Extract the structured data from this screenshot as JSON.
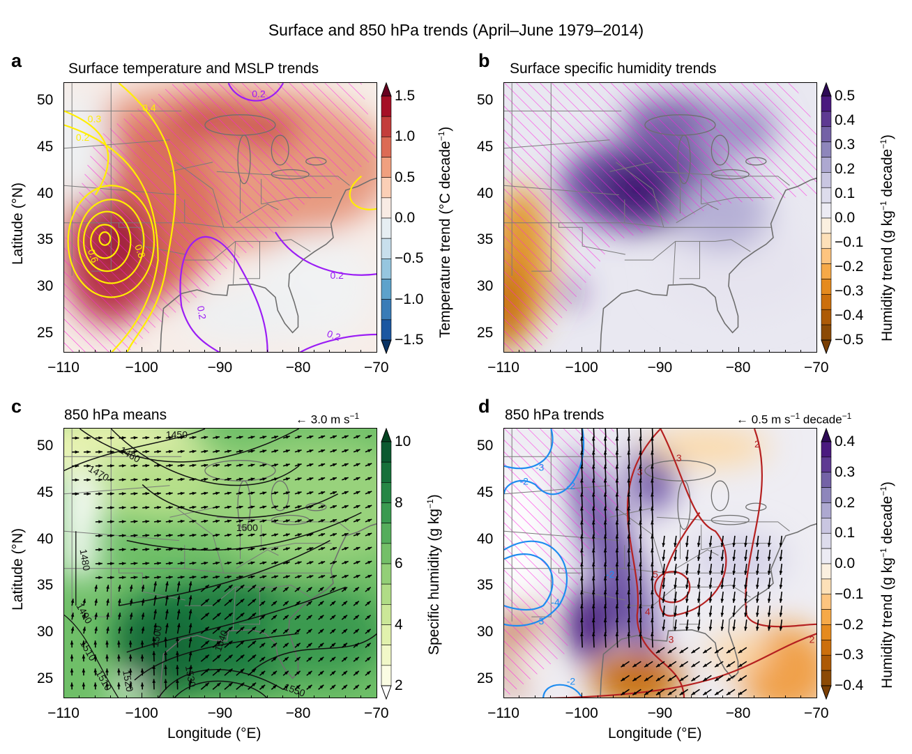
{
  "figure_title": "Surface and 850 hPa trends (April–June 1979–2014)",
  "lon_ticks": [
    "−110",
    "−100",
    "−90",
    "−80",
    "−70"
  ],
  "lat_ticks": [
    "50",
    "45",
    "40",
    "35",
    "30",
    "25"
  ],
  "panels": {
    "a": {
      "letter": "a",
      "title": "Surface temperature and MSLP trends",
      "ylabel": "Latitude (°N)",
      "cbar_label": "Temperature trend (°C decade",
      "cbar_sup": "−1",
      "cbar_ticks": [
        "1.5",
        "1.0",
        "0.5",
        "0.0",
        "−0.5",
        "−1.0",
        "−1.5"
      ],
      "cbar_colors": [
        "#a50f26",
        "#c33d3b",
        "#dc6b55",
        "#f0a07f",
        "#fbcfb6",
        "#f8ebe4",
        "#e6eef2",
        "#c8dfec",
        "#96c6df",
        "#5da2cb",
        "#3a7cb7",
        "#1b57a1"
      ],
      "cbar_ends": [
        "#67001f",
        "#0b3465"
      ],
      "contour_labels": [
        "0.4",
        "0.3",
        "0.2",
        "0.6",
        "0.8",
        "0.2",
        "0.2",
        "0.2",
        "0.2"
      ]
    },
    "b": {
      "letter": "b",
      "title": "Surface specific humidity trends",
      "cbar_label": "Humidity trend (g kg",
      "cbar_sup": "−1",
      "cbar_label2": " decade",
      "cbar_sup2": "−1",
      "cbar_ticks": [
        "0.5",
        "0.4",
        "0.3",
        "0.2",
        "0.1",
        "0.0",
        "−0.1",
        "−0.2",
        "−0.3",
        "−0.4",
        "−0.5"
      ],
      "cbar_colors": [
        "#4a1a7f",
        "#5e3a92",
        "#7462a6",
        "#8e86bb",
        "#ada8d0",
        "#c9c6e1",
        "#dddcec",
        "#ecebf3",
        "#fbf0e0",
        "#fde0b8",
        "#fdc47f",
        "#f6a948",
        "#e58a1e",
        "#cc6f0c",
        "#ad5a06",
        "#8c4a05"
      ],
      "cbar_ends": [
        "#2d0a55",
        "#7a3f04"
      ]
    },
    "c": {
      "letter": "c",
      "title": "850 hPa means",
      "ylabel": "Latitude (°N)",
      "xlabel": "Longitude (°E)",
      "ref_vector": "3.0 m s",
      "ref_sup": "−1",
      "cbar_label": "Specific humidity (g kg",
      "cbar_sup": "−1",
      "cbar_ticks": [
        "10",
        "8",
        "6",
        "4",
        "2"
      ],
      "cbar_colors": [
        "#0b5a30",
        "#16703a",
        "#268645",
        "#3a9a50",
        "#55ad5c",
        "#74bf68",
        "#93cf77",
        "#b0dc86",
        "#cbe798",
        "#e1f1ad",
        "#f1f8c8",
        "#fbfde3"
      ],
      "cbar_ends": [
        "#044321",
        "#ffffff"
      ],
      "contour_labels": [
        "1450",
        "1460",
        "1470",
        "1480",
        "1490",
        "1500",
        "1500",
        "1510",
        "1520",
        "1530",
        "1540",
        "1550",
        "1510"
      ]
    },
    "d": {
      "letter": "d",
      "title": "850 hPa trends",
      "xlabel": "Longitude (°E)",
      "ref_vector": "0.5 m s",
      "ref_sup": "−1",
      "ref_unit2": " decade",
      "ref_sup2": "−1",
      "cbar_label": "Humidity trend (g kg",
      "cbar_sup": "−1",
      "cbar_label2": " decade",
      "cbar_sup2": "−1",
      "cbar_ticks": [
        "0.4",
        "0.3",
        "0.2",
        "0.1",
        "0.0",
        "−0.1",
        "−0.2",
        "−0.3",
        "−0.4"
      ],
      "cbar_colors": [
        "#4a1a7f",
        "#5e3a92",
        "#7462a6",
        "#8e86bb",
        "#ada8d0",
        "#c9c6e1",
        "#dddcec",
        "#ecebf3",
        "#fbf0e0",
        "#fde0b8",
        "#fdc47f",
        "#f6a948",
        "#e58a1e",
        "#cc6f0c",
        "#ad5a06",
        "#8c4a05"
      ],
      "cbar_ends": [
        "#2d0a55",
        "#7a3f04"
      ],
      "contour_labels": [
        "-3",
        "-2",
        "-2",
        "-4",
        "-3",
        "-2",
        "-2",
        "3",
        "2",
        "5",
        "4",
        "3",
        "3",
        "2"
      ]
    }
  }
}
